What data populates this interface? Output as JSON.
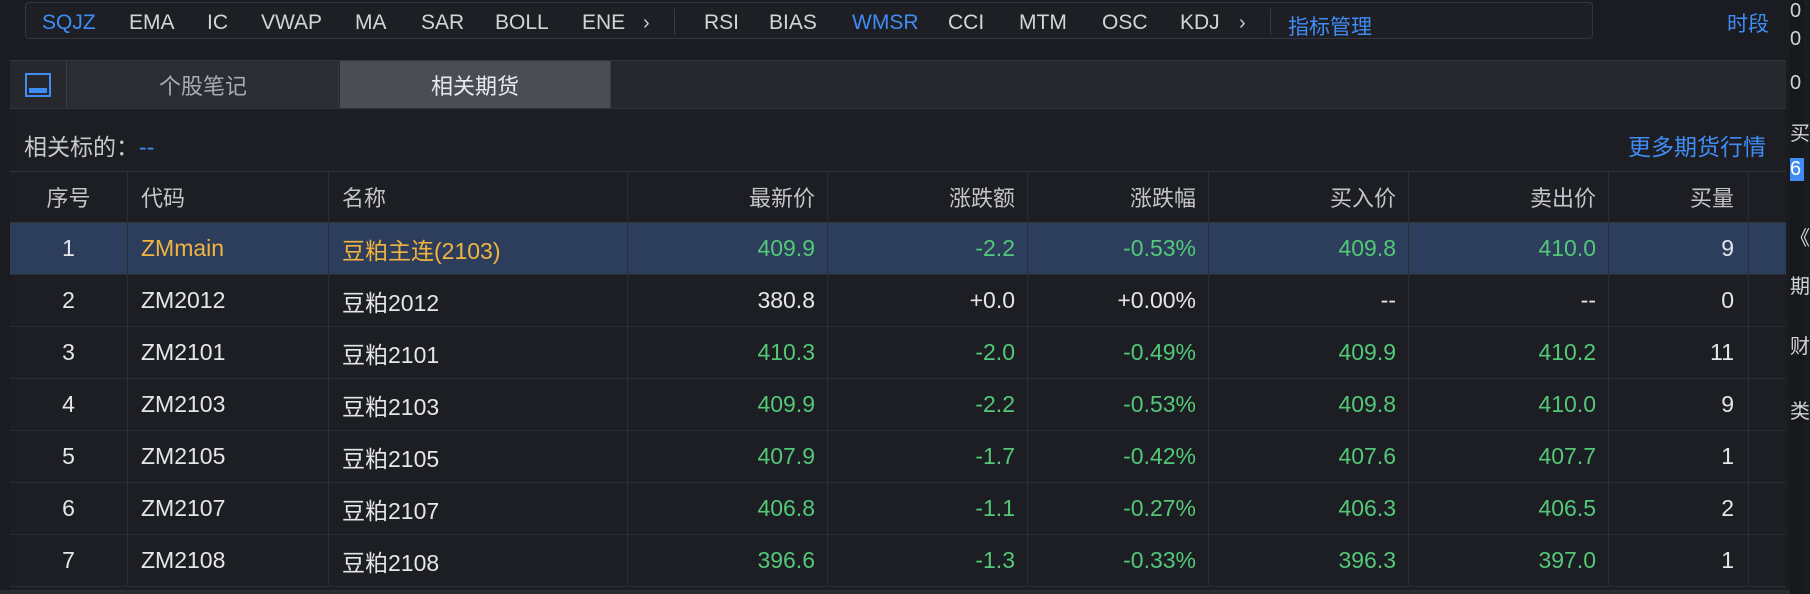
{
  "indicators_left": [
    "SQJZ",
    "EMA",
    "IC",
    "VWAP",
    "MA",
    "SAR",
    "BOLL",
    "ENE"
  ],
  "indicators_right": [
    "RSI",
    "BIAS",
    "WMSR",
    "CCI",
    "MTM",
    "OSC",
    "KDJ"
  ],
  "active_indicators": [
    "SQJZ",
    "WMSR"
  ],
  "indicator_manage": "指标管理",
  "time_segment": "时段",
  "tabs": [
    "个股笔记",
    "相关期货"
  ],
  "active_tab": "相关期货",
  "related": {
    "label": "相关标的：",
    "value": "--"
  },
  "more_link": "更多期货行情",
  "columns": [
    "序号",
    "代码",
    "名称",
    "最新价",
    "涨跌额",
    "涨跌幅",
    "买入价",
    "卖出价",
    "买量"
  ],
  "rows": [
    [
      "1",
      "ZMmain",
      "豆粕主连(2103)",
      "409.9",
      "-2.2",
      "-0.53%",
      "409.8",
      "410.0",
      "9"
    ],
    [
      "2",
      "ZM2012",
      "豆粕2012",
      "380.8",
      "+0.0",
      "+0.00%",
      "--",
      "--",
      "0"
    ],
    [
      "3",
      "ZM2101",
      "豆粕2101",
      "410.3",
      "-2.0",
      "-0.49%",
      "409.9",
      "410.2",
      "11"
    ],
    [
      "4",
      "ZM2103",
      "豆粕2103",
      "409.9",
      "-2.2",
      "-0.53%",
      "409.8",
      "410.0",
      "9"
    ],
    [
      "5",
      "ZM2105",
      "豆粕2105",
      "407.9",
      "-1.7",
      "-0.42%",
      "407.6",
      "407.7",
      "1"
    ],
    [
      "6",
      "ZM2107",
      "豆粕2107",
      "406.8",
      "-1.1",
      "-0.27%",
      "406.3",
      "406.5",
      "2"
    ],
    [
      "7",
      "ZM2108",
      "豆粕2108",
      "396.6",
      "-1.3",
      "-0.33%",
      "396.3",
      "397.0",
      "1"
    ]
  ],
  "selected_row": 0,
  "right_edge_chars": [
    "0",
    "0",
    "0",
    "买",
    "6",
    "《",
    "期",
    "财",
    "类"
  ],
  "colors": {
    "accent": "#3f8cf5",
    "down": "#52c878",
    "highlight": "#f2b441",
    "selected_bg": "#2d3e5c"
  }
}
